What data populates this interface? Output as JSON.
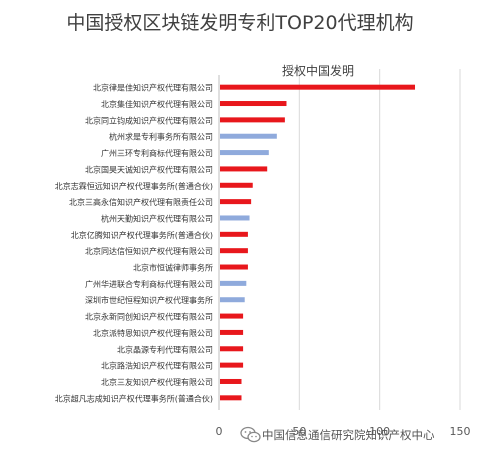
{
  "chart_data": {
    "type": "bar",
    "orientation": "horizontal",
    "title": "中国授权区块链发明专利TOP20代理机构",
    "subtitle": "授权中国发明",
    "xlim": [
      0,
      150
    ],
    "x_ticks": [
      "0",
      "50",
      "100",
      "150"
    ],
    "grid": true,
    "categories": [
      "北京律是佳知识产权代理有限公司",
      "北京集佳知识产权代理有限公司",
      "北京同立钧成知识产权代理有限公司",
      "杭州求是专利事务所有限公司",
      "广州三环专利商标代理有限公司",
      "北京国昊天诚知识产权代理有限公司",
      "北京志霖恒远知识产权代理事务所(普通合伙)",
      "北京三高永信知识产权代理有限责任公司",
      "杭州天勤知识产权代理有限公司",
      "北京亿腾知识产权代理事务所(普通合伙)",
      "北京同达信恒知识产权代理有限公司",
      "北京市恒诚律师事务所",
      "广州华进联合专利商标代理有限公司",
      "深圳市世纪恒程知识产权代理事务所",
      "北京永新同创知识产权代理有限公司",
      "北京派特恩知识产权代理有限公司",
      "北京晶源专利代理有限公司",
      "北京路浩知识产权代理有限公司",
      "北京三友知识产权代理有限公司",
      "北京超凡志成知识产权代理事务所(普通合伙)"
    ],
    "values": [
      122,
      42,
      41,
      36,
      31,
      30,
      21,
      20,
      19,
      18,
      18,
      18,
      17,
      16,
      15,
      15,
      15,
      15,
      14,
      14
    ],
    "colors": [
      "red",
      "red",
      "red",
      "blue",
      "blue",
      "red",
      "red",
      "red",
      "blue",
      "red",
      "red",
      "red",
      "blue",
      "blue",
      "red",
      "red",
      "red",
      "red",
      "red",
      "red"
    ]
  },
  "palette": {
    "red": "#e8171c",
    "blue": "#8faadc",
    "axis": "#bfbfbf",
    "grid": "#d9d9d9",
    "text": "#333333"
  },
  "watermark": "中国信息通信研究院知识产权中心",
  "icons": {
    "wechat": "wechat-icon"
  }
}
